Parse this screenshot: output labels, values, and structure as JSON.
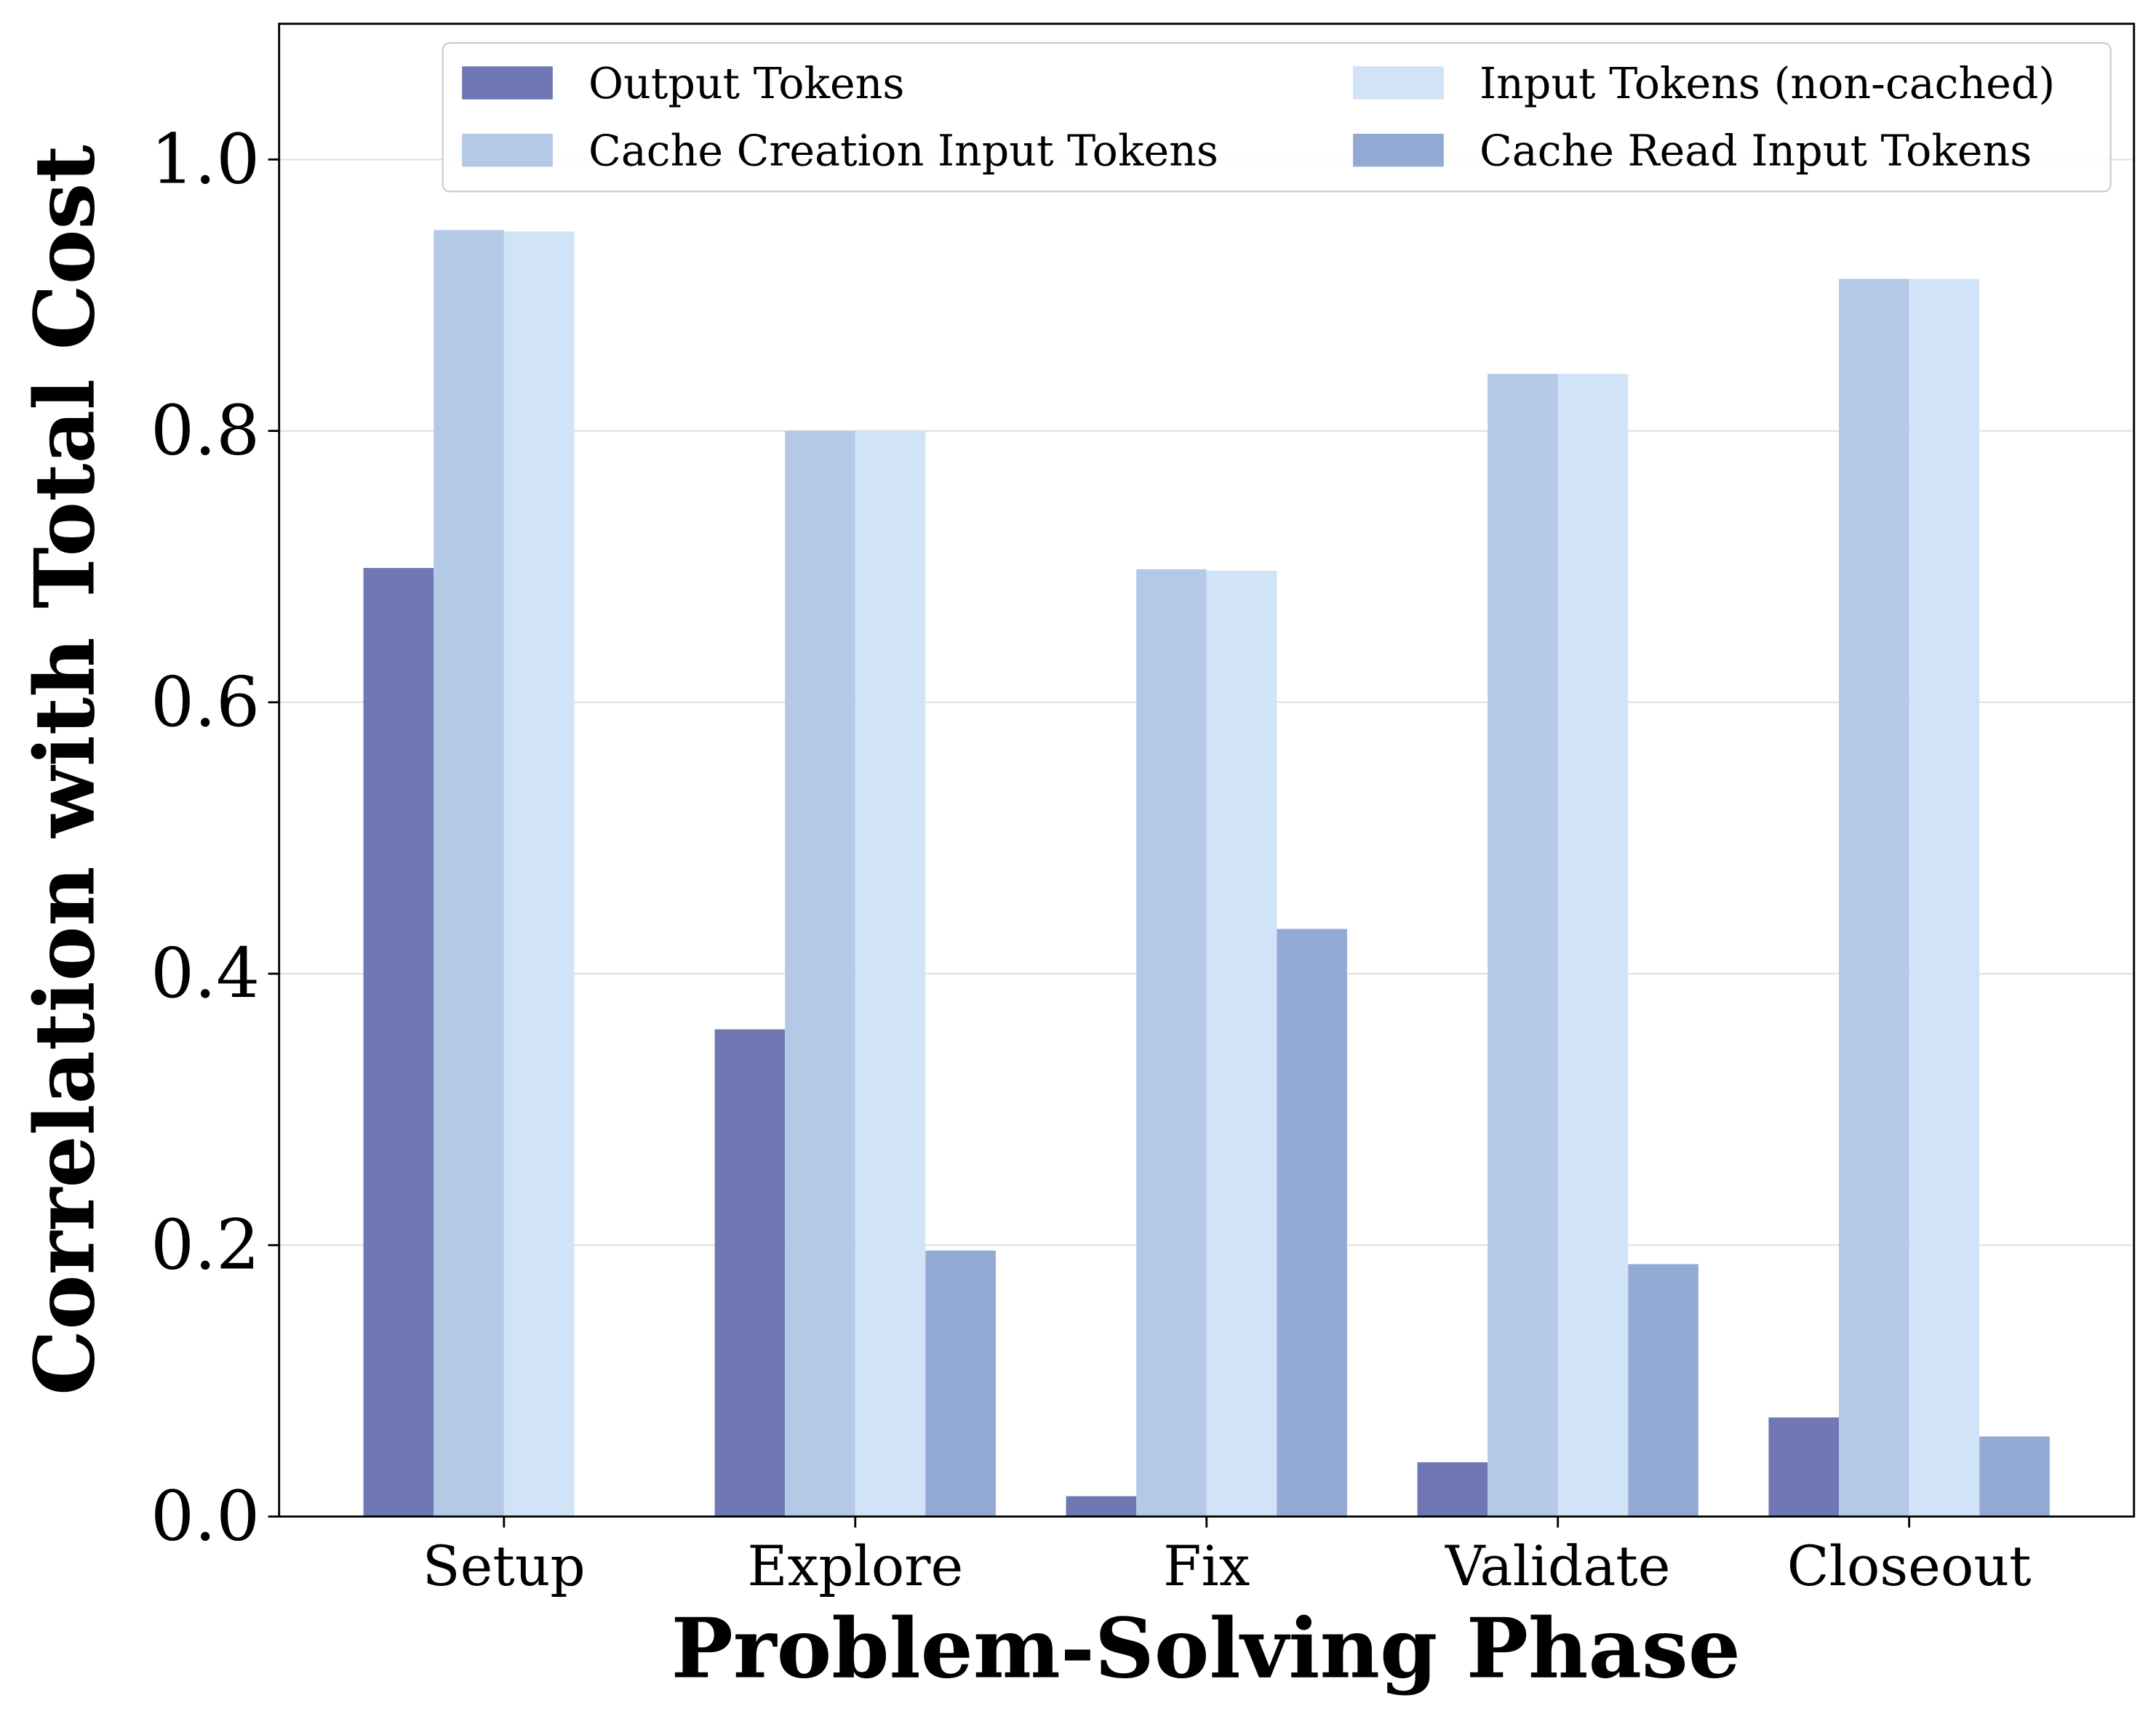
{
  "chart_data": {
    "type": "bar",
    "title": "",
    "xlabel": "Problem-Solving Phase",
    "ylabel": "Correlation with Total Cost",
    "categories": [
      "Setup",
      "Explore",
      "Fix",
      "Validate",
      "Closeout"
    ],
    "ylim": [
      0,
      1.1
    ],
    "yticks": [
      "0.0",
      "0.2",
      "0.4",
      "0.6",
      "0.8",
      "1.0"
    ],
    "grid": true,
    "legend_position": "top-right",
    "series": [
      {
        "name": "Output Tokens",
        "color": "#6f78b3",
        "values": [
          0.699,
          0.359,
          0.015,
          0.04,
          0.073
        ]
      },
      {
        "name": "Cache Creation Input Tokens",
        "color": "#b3c9e6",
        "values": [
          0.948,
          0.8,
          0.698,
          0.842,
          0.912
        ]
      },
      {
        "name": "Input Tokens (non-cached)",
        "color": "#d0e3f7",
        "values": [
          0.947,
          0.8,
          0.697,
          0.842,
          0.912
        ]
      },
      {
        "name": "Cache Read Input Tokens",
        "color": "#93aad5",
        "values": [
          0,
          0.196,
          0.433,
          0.186,
          0.059
        ]
      }
    ]
  }
}
